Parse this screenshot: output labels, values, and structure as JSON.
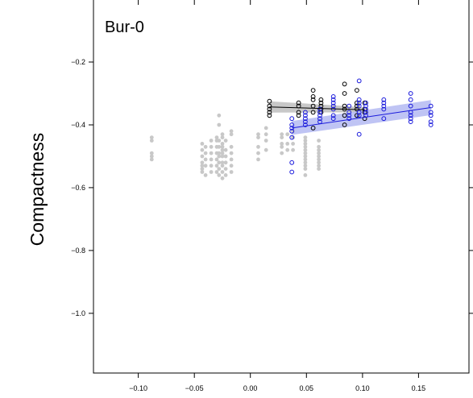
{
  "chart_data": {
    "type": "scatter",
    "panel_title": "Bur-0",
    "xlabel": "",
    "ylabel": "Compactness",
    "xlim": [
      -0.14,
      0.195
    ],
    "ylim": [
      -1.19,
      0.0
    ],
    "xticks": [
      {
        "value": -0.1,
        "label": "−0.10"
      },
      {
        "value": -0.05,
        "label": "−0.05"
      },
      {
        "value": 0.0,
        "label": "0.00"
      },
      {
        "value": 0.05,
        "label": "0.05"
      },
      {
        "value": 0.1,
        "label": "0.10"
      },
      {
        "value": 0.15,
        "label": "0.15"
      }
    ],
    "yticks": [
      {
        "value": -0.2,
        "label": "−0.2"
      },
      {
        "value": -0.4,
        "label": "−0.4"
      },
      {
        "value": -0.6,
        "label": "−0.6"
      },
      {
        "value": -0.8,
        "label": "−0.8"
      },
      {
        "value": -1.0,
        "label": "−1.0"
      }
    ],
    "grid": false,
    "colors": {
      "gray_points": "#c8c8c8",
      "black_series": "#000000",
      "blue_series": "#1a1adc",
      "blue_band": "#aab0f0",
      "black_band": "#9a9a9a"
    },
    "series": [
      {
        "style": "gray-filled",
        "x": [
          -0.088,
          -0.088,
          -0.088,
          -0.088,
          -0.088,
          -0.043,
          -0.043,
          -0.043,
          -0.043,
          -0.043,
          -0.043,
          -0.043,
          -0.04,
          -0.04,
          -0.04,
          -0.04,
          -0.04,
          -0.035,
          -0.035,
          -0.035,
          -0.035,
          -0.035,
          -0.035,
          -0.03,
          -0.03,
          -0.03,
          -0.03,
          -0.03,
          -0.03,
          -0.03,
          -0.028,
          -0.028,
          -0.028,
          -0.028,
          -0.028,
          -0.028,
          -0.028,
          -0.028,
          -0.028,
          -0.025,
          -0.025,
          -0.025,
          -0.025,
          -0.025,
          -0.025,
          -0.025,
          -0.025,
          -0.025,
          -0.025,
          -0.025,
          -0.022,
          -0.022,
          -0.022,
          -0.022,
          -0.022,
          -0.022,
          -0.017,
          -0.017,
          -0.017,
          -0.017,
          -0.017,
          -0.017,
          -0.017,
          0.007,
          0.007,
          0.007,
          0.007,
          0.007,
          0.014,
          0.014,
          0.014,
          0.014,
          0.028,
          0.028,
          0.028,
          0.028,
          0.028,
          0.033,
          0.033,
          0.033,
          0.038,
          0.038,
          0.038,
          0.038,
          0.049,
          0.049,
          0.049,
          0.049,
          0.049,
          0.049,
          0.049,
          0.049,
          0.049,
          0.049,
          0.049,
          0.049,
          0.061,
          0.061,
          0.061,
          0.061,
          0.061,
          0.061,
          0.061,
          0.061,
          0.061
        ],
        "y": [
          -0.44,
          -0.45,
          -0.49,
          -0.5,
          -0.51,
          -0.46,
          -0.48,
          -0.5,
          -0.52,
          -0.53,
          -0.54,
          -0.55,
          -0.47,
          -0.49,
          -0.51,
          -0.53,
          -0.56,
          -0.45,
          -0.47,
          -0.49,
          -0.51,
          -0.53,
          -0.55,
          -0.44,
          -0.45,
          -0.47,
          -0.49,
          -0.51,
          -0.53,
          -0.55,
          -0.37,
          -0.4,
          -0.45,
          -0.47,
          -0.49,
          -0.5,
          -0.52,
          -0.54,
          -0.56,
          -0.43,
          -0.44,
          -0.46,
          -0.47,
          -0.48,
          -0.49,
          -0.5,
          -0.52,
          -0.53,
          -0.55,
          -0.57,
          -0.45,
          -0.48,
          -0.5,
          -0.52,
          -0.54,
          -0.56,
          -0.42,
          -0.43,
          -0.47,
          -0.49,
          -0.51,
          -0.53,
          -0.55,
          -0.43,
          -0.44,
          -0.47,
          -0.49,
          -0.51,
          -0.41,
          -0.43,
          -0.45,
          -0.48,
          -0.43,
          -0.44,
          -0.46,
          -0.47,
          -0.49,
          -0.43,
          -0.46,
          -0.48,
          -0.42,
          -0.44,
          -0.46,
          -0.48,
          -0.44,
          -0.45,
          -0.46,
          -0.47,
          -0.48,
          -0.49,
          -0.5,
          -0.51,
          -0.52,
          -0.53,
          -0.54,
          -0.56,
          -0.45,
          -0.47,
          -0.48,
          -0.49,
          -0.5,
          -0.51,
          -0.52,
          -0.53,
          -0.54
        ]
      },
      {
        "style": "black-open",
        "x": [
          0.017,
          0.017,
          0.017,
          0.017,
          0.017,
          0.043,
          0.043,
          0.043,
          0.043,
          0.056,
          0.056,
          0.056,
          0.056,
          0.056,
          0.056,
          0.063,
          0.063,
          0.063,
          0.063,
          0.063,
          0.084,
          0.084,
          0.084,
          0.084,
          0.084,
          0.084,
          0.095,
          0.095,
          0.095,
          0.095,
          0.095,
          0.102,
          0.102,
          0.102,
          0.102
        ],
        "y": [
          -0.325,
          -0.34,
          -0.35,
          -0.36,
          -0.37,
          -0.33,
          -0.34,
          -0.36,
          -0.37,
          -0.29,
          -0.31,
          -0.32,
          -0.34,
          -0.36,
          -0.41,
          -0.32,
          -0.33,
          -0.34,
          -0.35,
          -0.36,
          -0.27,
          -0.3,
          -0.34,
          -0.35,
          -0.37,
          -0.4,
          -0.29,
          -0.33,
          -0.34,
          -0.35,
          -0.37,
          -0.33,
          -0.35,
          -0.36,
          -0.38
        ]
      },
      {
        "style": "blue-open",
        "x": [
          0.037,
          0.037,
          0.037,
          0.037,
          0.037,
          0.037,
          0.037,
          0.049,
          0.049,
          0.049,
          0.049,
          0.049,
          0.062,
          0.062,
          0.062,
          0.062,
          0.062,
          0.074,
          0.074,
          0.074,
          0.074,
          0.074,
          0.074,
          0.074,
          0.088,
          0.088,
          0.088,
          0.088,
          0.097,
          0.097,
          0.097,
          0.097,
          0.097,
          0.097,
          0.097,
          0.103,
          0.103,
          0.103,
          0.103,
          0.103,
          0.119,
          0.119,
          0.119,
          0.119,
          0.119,
          0.143,
          0.143,
          0.143,
          0.143,
          0.143,
          0.143,
          0.143,
          0.161,
          0.161,
          0.161,
          0.161,
          0.161
        ],
        "y": [
          -0.38,
          -0.4,
          -0.42,
          -0.44,
          -0.52,
          -0.55,
          -0.41,
          -0.36,
          -0.37,
          -0.38,
          -0.39,
          -0.4,
          -0.35,
          -0.36,
          -0.37,
          -0.38,
          -0.39,
          -0.31,
          -0.32,
          -0.33,
          -0.34,
          -0.35,
          -0.37,
          -0.38,
          -0.34,
          -0.36,
          -0.37,
          -0.38,
          -0.26,
          -0.32,
          -0.33,
          -0.34,
          -0.36,
          -0.37,
          -0.43,
          -0.33,
          -0.34,
          -0.35,
          -0.36,
          -0.37,
          -0.32,
          -0.33,
          -0.34,
          -0.35,
          -0.38,
          -0.3,
          -0.32,
          -0.34,
          -0.36,
          -0.37,
          -0.38,
          -0.39,
          -0.34,
          -0.36,
          -0.37,
          -0.39,
          -0.4
        ]
      }
    ],
    "fits": [
      {
        "series": "black-open",
        "x": [
          0.017,
          0.102
        ],
        "y": [
          -0.343,
          -0.352
        ],
        "ci_half_width": [
          0.018,
          0.008
        ]
      },
      {
        "series": "blue-open",
        "x": [
          0.037,
          0.161
        ],
        "y": [
          -0.41,
          -0.345
        ],
        "ci_half_width": [
          0.022,
          0.024
        ]
      }
    ]
  }
}
